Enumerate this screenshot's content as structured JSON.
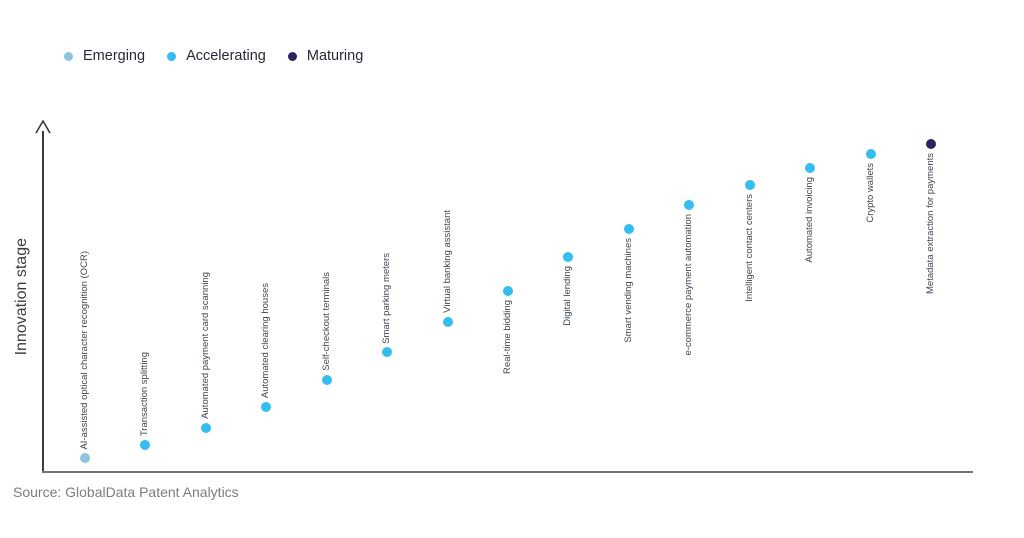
{
  "legend": {
    "items": [
      {
        "label": "Emerging",
        "color": "#90c3de"
      },
      {
        "label": "Accelerating",
        "color": "#35bdf2"
      },
      {
        "label": "Maturing",
        "color": "#2d2364"
      }
    ]
  },
  "axes": {
    "y_label": "Innovation stage"
  },
  "footer": {
    "source": "Source: GlobalData Patent Analytics"
  },
  "chart_data": {
    "type": "scatter",
    "title": "",
    "xlabel": "",
    "ylabel": "Innovation stage",
    "grid": false,
    "x_axis_ticks": "none",
    "y_axis_ticks": "none",
    "legend_position": "top-left",
    "ylim": [
      0,
      1
    ],
    "categories": [
      "AI-assisted optical character recognition (OCR)",
      "Transaction splitting",
      "Automated payment card scanning",
      "Automated clearing houses",
      "Self-checkout terminals",
      "Smart parking meters",
      "Virtual banking assistant",
      "Real-time bidding",
      "Digital lending",
      "Smart vending machines",
      "e-commerce payment automation",
      "Intelligent contact centers",
      "Automated invoicing",
      "Crypto wallets",
      "Metadata extraction for payments"
    ],
    "points": [
      {
        "label": "AI-assisted optical character recognition (OCR)",
        "stage": "Emerging",
        "value": 0.04
      },
      {
        "label": "Transaction splitting",
        "stage": "Accelerating",
        "value": 0.08
      },
      {
        "label": "Automated payment card scanning",
        "stage": "Accelerating",
        "value": 0.13
      },
      {
        "label": "Automated clearing houses",
        "stage": "Accelerating",
        "value": 0.19
      },
      {
        "label": "Self-checkout terminals",
        "stage": "Accelerating",
        "value": 0.27
      },
      {
        "label": "Smart parking meters",
        "stage": "Accelerating",
        "value": 0.35
      },
      {
        "label": "Virtual banking assistant",
        "stage": "Accelerating",
        "value": 0.44
      },
      {
        "label": "Real-time bidding",
        "stage": "Accelerating",
        "value": 0.53
      },
      {
        "label": "Digital lending",
        "stage": "Accelerating",
        "value": 0.63
      },
      {
        "label": "Smart vending machines",
        "stage": "Accelerating",
        "value": 0.71
      },
      {
        "label": "e-commerce payment automation",
        "stage": "Accelerating",
        "value": 0.78
      },
      {
        "label": "Intelligent contact centers",
        "stage": "Accelerating",
        "value": 0.84
      },
      {
        "label": "Automated invoicing",
        "stage": "Accelerating",
        "value": 0.89
      },
      {
        "label": "Crypto wallets",
        "stage": "Accelerating",
        "value": 0.93
      },
      {
        "label": "Metadata extraction for payments",
        "stage": "Maturing",
        "value": 0.96
      }
    ]
  }
}
